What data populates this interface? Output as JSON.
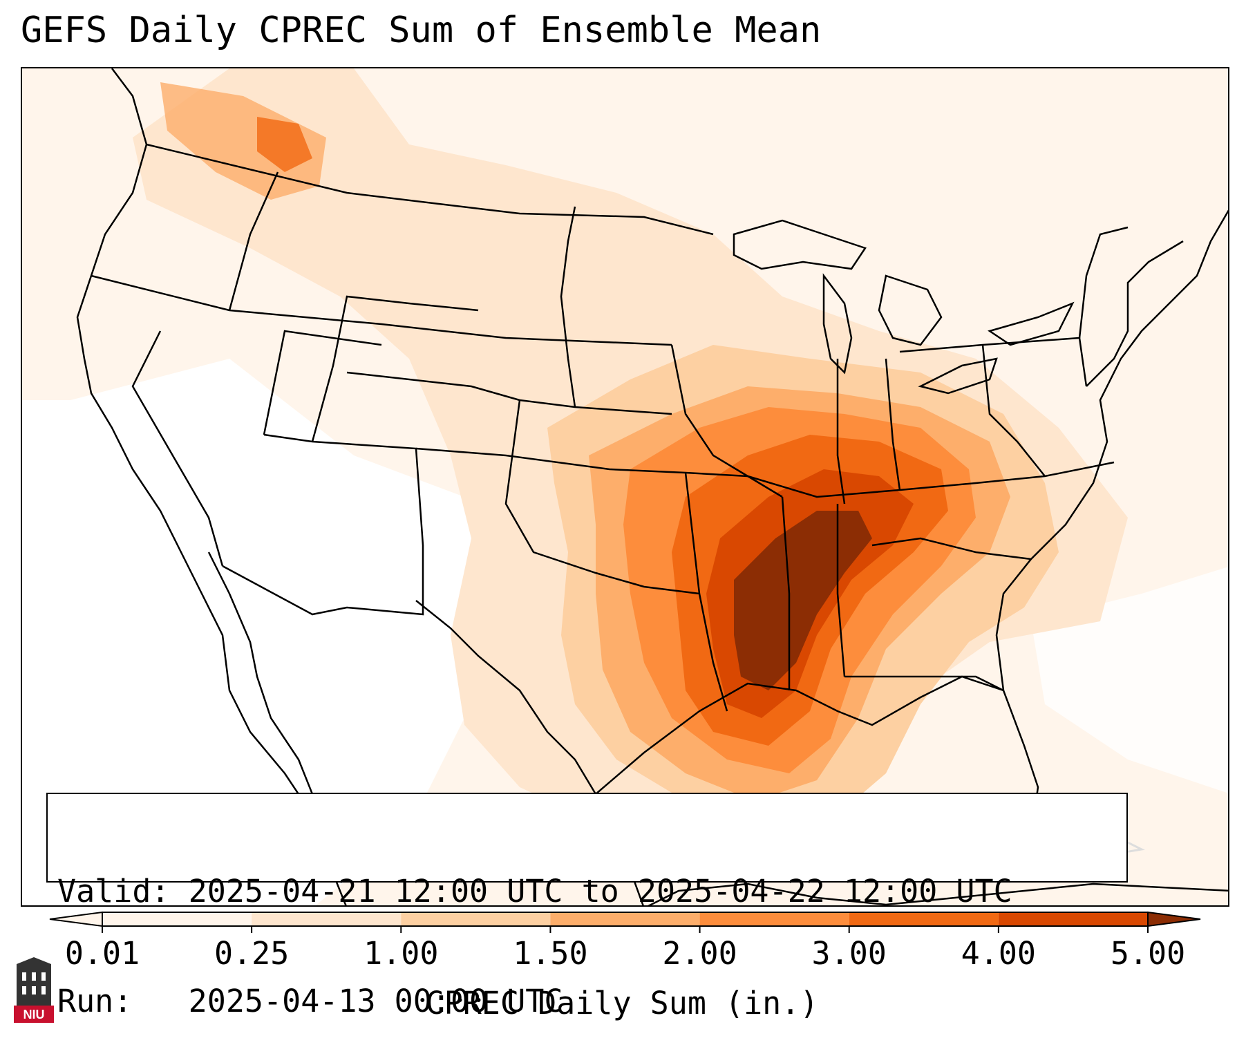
{
  "title": "GEFS Daily CPREC Sum of Ensemble Mean",
  "valid_line": "Valid: 2025-04-21 12:00 UTC to 2025-04-22 12:00 UTC",
  "run_line": "Run:   2025-04-13 00:00 UTC",
  "colorbar": {
    "title": "CPREC Daily Sum (in.)",
    "levels": [
      "0.01",
      "0.25",
      "1.00",
      "1.50",
      "2.00",
      "3.00",
      "4.00",
      "5.00"
    ],
    "colors": [
      "#fff5eb",
      "#fee6ce",
      "#fdd0a2",
      "#fdae6b",
      "#fd8d3c",
      "#f16913",
      "#d94801",
      "#8c2d04"
    ],
    "extend": "both"
  },
  "logo": {
    "text": "NIU",
    "icon": "university-tower-icon",
    "color": "#c8102e"
  },
  "precip_field": {
    "description_units": "inches",
    "max_core": "Lower Mississippi Valley / Tennessee Valley"
  }
}
